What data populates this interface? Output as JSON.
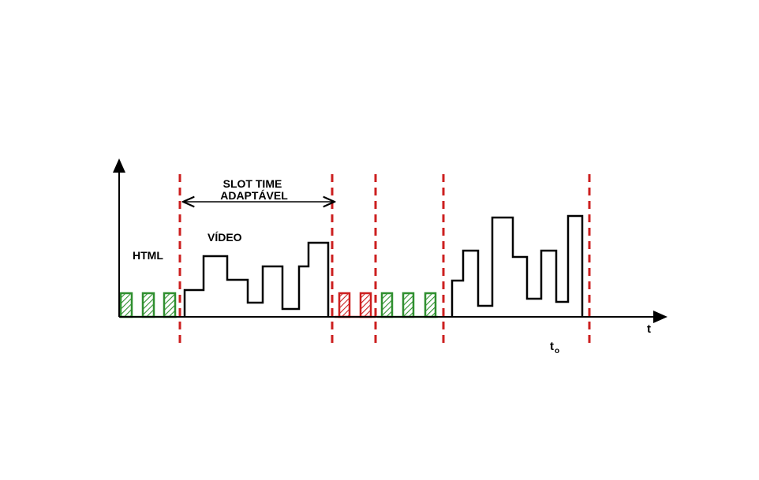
{
  "labels": {
    "slot_time_line1": "SLOT TIME",
    "slot_time_line2": "ADAPTÁVEL",
    "video": "VÍDEO",
    "html": "HTML",
    "time_axis": "t",
    "t0_base": "t",
    "t0_sub": "o"
  },
  "colors": {
    "axis": "#000000",
    "divider": "#cc1f1f",
    "html_packets": "#2f8f2f",
    "red_packets": "#cc1f1f",
    "video_signal": "#000000"
  }
}
